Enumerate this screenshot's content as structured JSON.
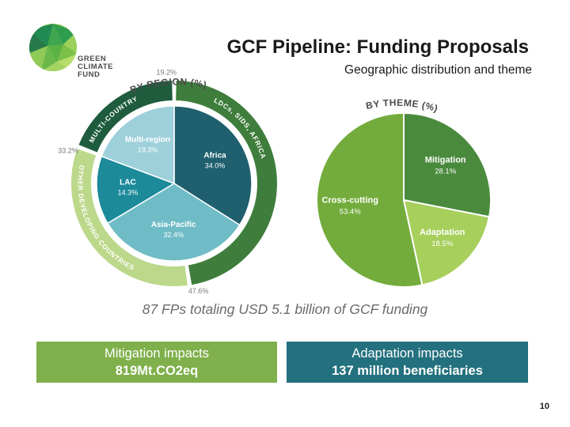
{
  "header": {
    "title": "GCF Pipeline: Funding Proposals",
    "subtitle": "Geographic distribution and theme"
  },
  "logo": {
    "line1": "GREEN",
    "line2": "CLIMATE",
    "line3": "FUND"
  },
  "chart_data": [
    {
      "type": "pie",
      "title": "BY REGION (%)",
      "categories": [
        "Africa",
        "Asia-Pacific",
        "LAC",
        "Multi-region"
      ],
      "values": [
        34.0,
        32.4,
        14.3,
        19.3
      ],
      "labels": [
        "34.0%",
        "32.4%",
        "14.3%",
        "19.3%"
      ],
      "colors": [
        "#1f5f6e",
        "#6fbcc6",
        "#1d8a9a",
        "#9ed0db"
      ],
      "outer_ring": [
        {
          "name": "LDCs, SIDS, AFRICA",
          "value": 47.6,
          "label": "47.6%",
          "color": "#3f7d3c"
        },
        {
          "name": "OTHER DEVELOPING COUNTRIES",
          "value": 33.2,
          "label": "33.2%",
          "color": "#bcd88b"
        },
        {
          "name": "MULTI-COUNTRY",
          "value": 19.2,
          "label": "19.2%",
          "color": "#1f5c3e"
        }
      ]
    },
    {
      "type": "pie",
      "title": "BY THEME (%)",
      "categories": [
        "Mitigation",
        "Adaptation",
        "Cross-cutting"
      ],
      "values": [
        28.1,
        18.5,
        53.4
      ],
      "labels": [
        "28.1%",
        "18.5%",
        "53.4%"
      ],
      "colors": [
        "#4a8a3d",
        "#a7cf5c",
        "#73ac3c"
      ]
    }
  ],
  "summary": "87 FPs totaling USD 5.1 billion of GCF funding",
  "boxes": {
    "mitigation": {
      "label": "Mitigation impacts",
      "value": "819Mt.CO2eq",
      "color": "#7fb04b"
    },
    "adaptation": {
      "label": "Adaptation impacts",
      "value": "137 million beneficiaries",
      "color": "#23707e"
    }
  },
  "page_number": "10"
}
